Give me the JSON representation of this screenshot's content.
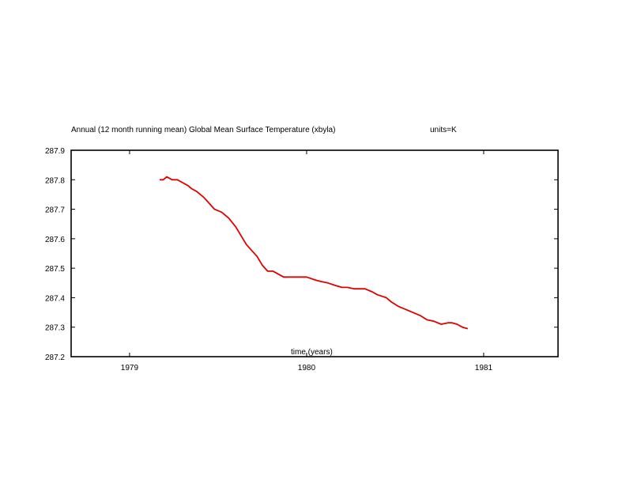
{
  "chart_data": {
    "type": "line",
    "title": "Annual (12 month running mean) Global Mean Surface Temperature (xbyla)",
    "units": "units=K",
    "xlabel": "time (years)",
    "ylabel": "",
    "xlim": [
      1978.67,
      1981.42
    ],
    "ylim": [
      287.2,
      287.9
    ],
    "xticks": [
      1979,
      1980,
      1981
    ],
    "yticks": [
      287.2,
      287.3,
      287.4,
      287.5,
      287.6,
      287.7,
      287.8,
      287.9
    ],
    "series_color": "#e00000",
    "grid": false,
    "series": [
      {
        "x": [
          1979.17,
          1979.19,
          1979.21,
          1979.24,
          1979.27,
          1979.3,
          1979.33,
          1979.35,
          1979.38,
          1979.42,
          1979.45,
          1979.48,
          1979.52,
          1979.56,
          1979.6,
          1979.63,
          1979.66,
          1979.69,
          1979.72,
          1979.75,
          1979.78,
          1979.81,
          1979.84,
          1979.87,
          1979.9,
          1979.95,
          1980.0,
          1980.05,
          1980.08,
          1980.12,
          1980.17,
          1980.2,
          1980.23,
          1980.27,
          1980.3,
          1980.33,
          1980.37,
          1980.4,
          1980.45,
          1980.48,
          1980.52,
          1980.56,
          1980.6,
          1980.64,
          1980.68,
          1980.72,
          1980.76,
          1980.8,
          1980.82,
          1980.85,
          1980.88,
          1980.91
        ],
        "y": [
          287.8,
          287.8,
          287.81,
          287.8,
          287.8,
          287.79,
          287.78,
          287.77,
          287.76,
          287.74,
          287.72,
          287.7,
          287.69,
          287.67,
          287.64,
          287.61,
          287.58,
          287.56,
          287.54,
          287.51,
          287.49,
          287.49,
          287.48,
          287.47,
          287.47,
          287.47,
          287.47,
          287.46,
          287.455,
          287.45,
          287.44,
          287.435,
          287.435,
          287.43,
          287.43,
          287.43,
          287.42,
          287.41,
          287.4,
          287.385,
          287.37,
          287.36,
          287.35,
          287.34,
          287.325,
          287.32,
          287.31,
          287.315,
          287.315,
          287.31,
          287.3,
          287.295
        ]
      }
    ]
  }
}
